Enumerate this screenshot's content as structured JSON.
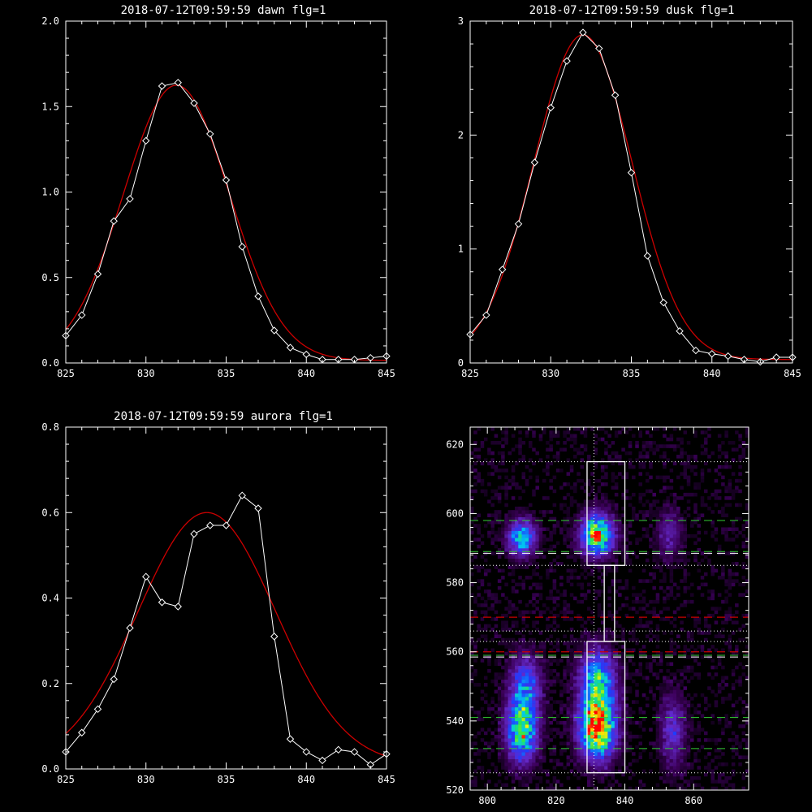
{
  "colors": {
    "background": "#000000",
    "axis": "#ffffff",
    "data_line": "#ffffff",
    "fit_line": "#cc0000",
    "green_dash": "#33cc33",
    "red_dash": "#cc0000"
  },
  "chart_data": [
    {
      "type": "line",
      "title": "2018-07-12T09:59:59 dawn flg=1",
      "xlim": [
        825,
        845
      ],
      "ylim": [
        0,
        2.0
      ],
      "xticks": [
        "825",
        "830",
        "835",
        "840",
        "845"
      ],
      "yticks": [
        "0.0",
        "0.5",
        "1.0",
        "1.5",
        "2.0"
      ],
      "series": [
        {
          "style": "data",
          "x": [
            825,
            826,
            827,
            828,
            829,
            830,
            831,
            832,
            833,
            834,
            835,
            836,
            837,
            838,
            839,
            840,
            841,
            842,
            843,
            844,
            845
          ],
          "values": [
            0.16,
            0.28,
            0.52,
            0.83,
            0.96,
            1.3,
            1.62,
            1.64,
            1.52,
            1.34,
            1.07,
            0.68,
            0.39,
            0.19,
            0.09,
            0.05,
            0.02,
            0.02,
            0.02,
            0.03,
            0.04
          ]
        },
        {
          "style": "fit",
          "gaussian": {
            "amp": 1.61,
            "center": 831.9,
            "sigma": 3.3,
            "offset": 0.015
          }
        }
      ]
    },
    {
      "type": "line",
      "title": "2018-07-12T09:59:59 dusk flg=1",
      "xlim": [
        825,
        845
      ],
      "ylim": [
        0,
        3
      ],
      "xticks": [
        "825",
        "830",
        "835",
        "840",
        "845"
      ],
      "yticks": [
        "0",
        "1",
        "2",
        "3"
      ],
      "series": [
        {
          "style": "data",
          "x": [
            825,
            826,
            827,
            828,
            829,
            830,
            831,
            832,
            833,
            834,
            835,
            836,
            837,
            838,
            839,
            840,
            841,
            842,
            843,
            844,
            845
          ],
          "values": [
            0.25,
            0.42,
            0.82,
            1.22,
            1.76,
            2.24,
            2.65,
            2.9,
            2.76,
            2.35,
            1.67,
            0.94,
            0.53,
            0.28,
            0.11,
            0.08,
            0.06,
            0.03,
            0.01,
            0.05,
            0.05
          ]
        },
        {
          "style": "fit",
          "gaussian": {
            "amp": 2.85,
            "center": 832.0,
            "sigma": 3.05,
            "offset": 0.03
          }
        }
      ]
    },
    {
      "type": "line",
      "title": "2018-07-12T09:59:59 aurora flg=1",
      "xlim": [
        825,
        845
      ],
      "ylim": [
        0,
        0.8
      ],
      "xticks": [
        "825",
        "830",
        "835",
        "840",
        "845"
      ],
      "yticks": [
        "0.0",
        "0.2",
        "0.4",
        "0.6",
        "0.8"
      ],
      "series": [
        {
          "style": "data",
          "x": [
            825,
            826,
            827,
            828,
            829,
            830,
            831,
            832,
            833,
            834,
            835,
            836,
            837,
            838,
            839,
            840,
            841,
            842,
            843,
            844,
            845
          ],
          "values": [
            0.04,
            0.085,
            0.14,
            0.21,
            0.33,
            0.45,
            0.39,
            0.38,
            0.55,
            0.57,
            0.57,
            0.64,
            0.61,
            0.31,
            0.07,
            0.04,
            0.02,
            0.045,
            0.04,
            0.01,
            0.035
          ]
        },
        {
          "style": "fit",
          "gaussian": {
            "amp": 0.59,
            "center": 833.8,
            "sigma": 4.3,
            "offset": 0.01
          }
        }
      ]
    },
    {
      "type": "heatmap",
      "xlim": [
        795,
        876
      ],
      "ylim": [
        520,
        625
      ],
      "xticks": [
        "800",
        "820",
        "840",
        "860"
      ],
      "yticks": [
        "520",
        "540",
        "560",
        "580",
        "600",
        "620"
      ],
      "blobs": [
        {
          "x": 810,
          "y": 537,
          "sx": 3.0,
          "sy": 6,
          "amp": 0.72
        },
        {
          "x": 811,
          "y": 550,
          "sx": 3.0,
          "sy": 6,
          "amp": 0.45
        },
        {
          "x": 810,
          "y": 593,
          "sx": 2.8,
          "sy": 3.5,
          "amp": 0.6
        },
        {
          "x": 832,
          "y": 538,
          "sx": 3.5,
          "sy": 6,
          "amp": 1.0
        },
        {
          "x": 832,
          "y": 552,
          "sx": 3.5,
          "sy": 6,
          "amp": 0.6
        },
        {
          "x": 832,
          "y": 594,
          "sx": 3.2,
          "sy": 4,
          "amp": 0.85
        },
        {
          "x": 854,
          "y": 537,
          "sx": 2.5,
          "sy": 7,
          "amp": 0.3
        },
        {
          "x": 853,
          "y": 594,
          "sx": 2.5,
          "sy": 5,
          "amp": 0.2
        }
      ],
      "noise_amp": 0.12,
      "vertical_dotted_x": 831,
      "h_dotted_y": [
        615,
        585,
        566,
        563,
        525
      ],
      "green_dashed_y": [
        598,
        589,
        559,
        541,
        532
      ],
      "white_dashed_y": [
        588.5,
        558.5
      ],
      "red_dashed_y": [
        570,
        560
      ],
      "boxes": [
        {
          "x0": 829,
          "x1": 840,
          "y0": 585,
          "y1": 615
        },
        {
          "x0": 834,
          "x1": 837,
          "y0": 563,
          "y1": 585
        },
        {
          "x0": 829,
          "x1": 840,
          "y0": 525,
          "y1": 563
        }
      ]
    }
  ]
}
